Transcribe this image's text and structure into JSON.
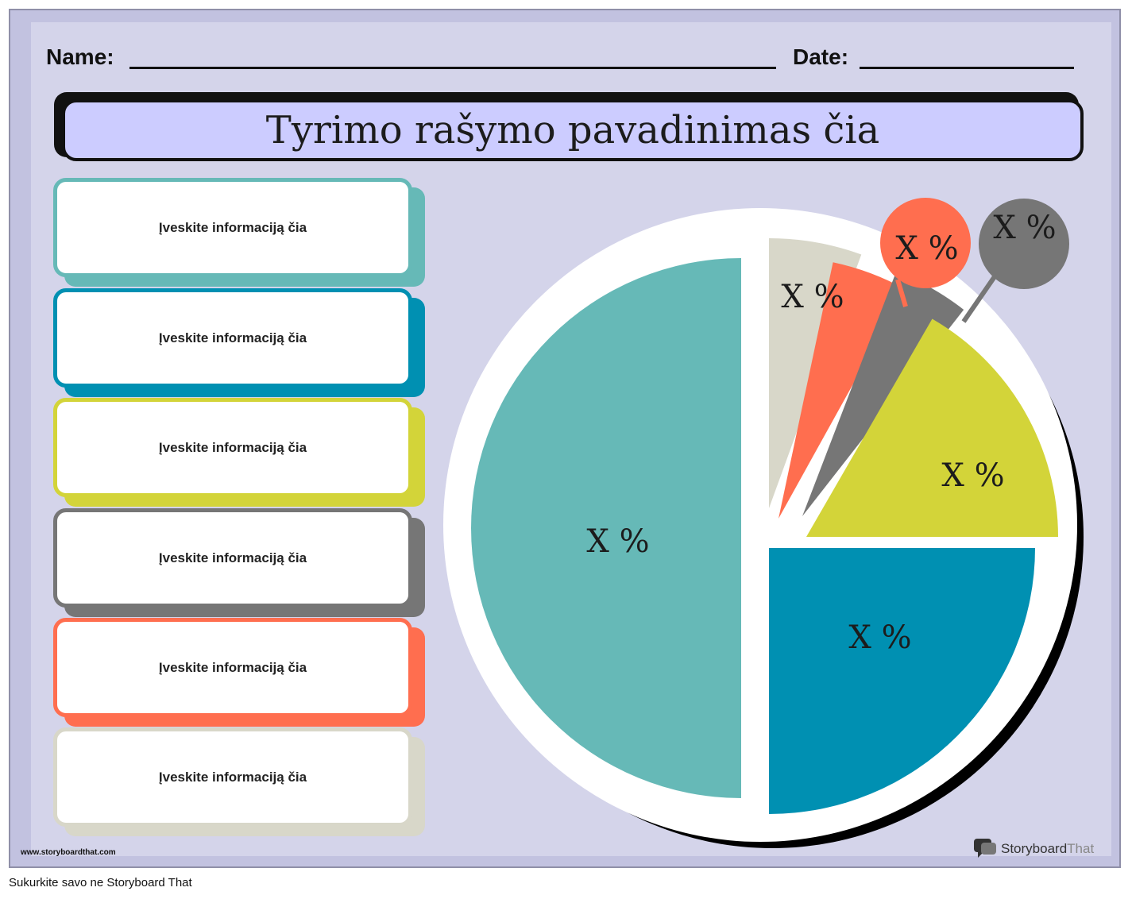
{
  "header": {
    "name_label": "Name:",
    "date_label": "Date:"
  },
  "title": "Tyrimo rašymo pavadinimas čia",
  "cards": [
    {
      "text": "Įveskite informaciją čia",
      "color": "#66b9b7"
    },
    {
      "text": "Įveskite informaciją čia",
      "color": "#0090b2"
    },
    {
      "text": "Įveskite informaciją čia",
      "color": "#d3d439"
    },
    {
      "text": "Įveskite informaciją čia",
      "color": "#767676"
    },
    {
      "text": "Įveskite informaciją čia",
      "color": "#ff6e4f"
    },
    {
      "text": "Įveskite informaciją čia",
      "color": "#d8d7c9"
    }
  ],
  "chart_data": {
    "type": "pie",
    "slices": [
      {
        "label": "X %",
        "value": 50,
        "color": "#66b9b7"
      },
      {
        "label": "X %",
        "value": 5,
        "color": "#d8d7c9"
      },
      {
        "label": "X %",
        "value": 3,
        "color": "#ff6e4f"
      },
      {
        "label": "X %",
        "value": 3,
        "color": "#767676"
      },
      {
        "label": "X %",
        "value": 12,
        "color": "#d3d439"
      },
      {
        "label": "X %",
        "value": 27,
        "color": "#0090b2"
      }
    ]
  },
  "footer": {
    "url": "www.storyboardthat.com",
    "brand_a": "Storyboard",
    "brand_b": "That"
  },
  "caption": "Sukurkite savo ne Storyboard That"
}
